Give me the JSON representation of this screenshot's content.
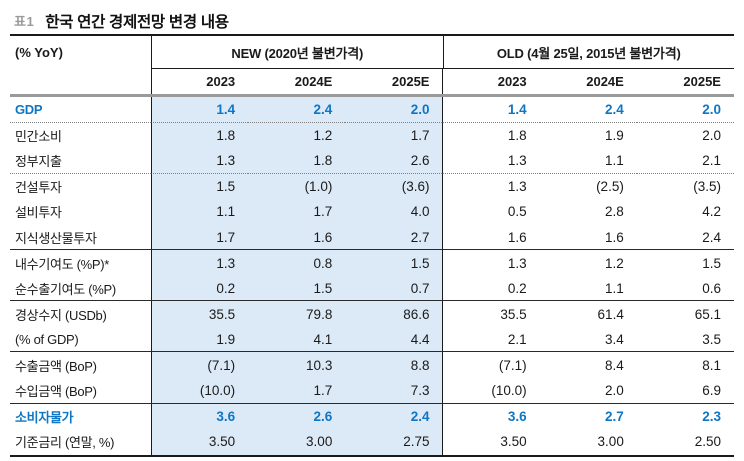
{
  "colors": {
    "accent_blue": "#0e76c4",
    "new_columns_bg": "#dce9f7",
    "header_rule_gray": "#9a9a9a"
  },
  "table": {
    "tag": "표1",
    "title": "한국 연간 경제전망 변경 내용",
    "unit_label": "(% YoY)",
    "groups": [
      {
        "label": "NEW (2020년 불변가격)",
        "years": [
          "2023",
          "2024E",
          "2025E"
        ]
      },
      {
        "label": "OLD (4월 25일, 2015년 불변가격)",
        "years": [
          "2023",
          "2024E",
          "2025E"
        ]
      }
    ],
    "rows": [
      {
        "label": "GDP",
        "new": [
          "1.4",
          "2.4",
          "2.0"
        ],
        "old": [
          "1.4",
          "2.4",
          "2.0"
        ],
        "highlight": true,
        "sep": "dotted"
      },
      {
        "label": "민간소비",
        "new": [
          "1.8",
          "1.2",
          "1.7"
        ],
        "old": [
          "1.8",
          "1.9",
          "2.0"
        ],
        "highlight": false,
        "sep": "none"
      },
      {
        "label": "정부지출",
        "new": [
          "1.3",
          "1.8",
          "2.6"
        ],
        "old": [
          "1.3",
          "1.1",
          "2.1"
        ],
        "highlight": false,
        "sep": "dotted"
      },
      {
        "label": "건설투자",
        "new": [
          "1.5",
          "(1.0)",
          "(3.6)"
        ],
        "old": [
          "1.3",
          "(2.5)",
          "(3.5)"
        ],
        "highlight": false,
        "sep": "none"
      },
      {
        "label": "설비투자",
        "new": [
          "1.1",
          "1.7",
          "4.0"
        ],
        "old": [
          "0.5",
          "2.8",
          "4.2"
        ],
        "highlight": false,
        "sep": "none"
      },
      {
        "label": "지식생산물투자",
        "new": [
          "1.7",
          "1.6",
          "2.7"
        ],
        "old": [
          "1.6",
          "1.6",
          "2.4"
        ],
        "highlight": false,
        "sep": "solid"
      },
      {
        "label": "내수기여도 (%P)*",
        "new": [
          "1.3",
          "0.8",
          "1.5"
        ],
        "old": [
          "1.3",
          "1.2",
          "1.5"
        ],
        "highlight": false,
        "sep": "none"
      },
      {
        "label": "순수출기여도 (%P)",
        "new": [
          "0.2",
          "1.5",
          "0.7"
        ],
        "old": [
          "0.2",
          "1.1",
          "0.6"
        ],
        "highlight": false,
        "sep": "solid"
      },
      {
        "label": "경상수지 (USDb)",
        "new": [
          "35.5",
          "79.8",
          "86.6"
        ],
        "old": [
          "35.5",
          "61.4",
          "65.1"
        ],
        "highlight": false,
        "sep": "none"
      },
      {
        "label": "(% of GDP)",
        "new": [
          "1.9",
          "4.1",
          "4.4"
        ],
        "old": [
          "2.1",
          "3.4",
          "3.5"
        ],
        "highlight": false,
        "sep": "solid"
      },
      {
        "label": "수출금액 (BoP)",
        "new": [
          "(7.1)",
          "10.3",
          "8.8"
        ],
        "old": [
          "(7.1)",
          "8.4",
          "8.1"
        ],
        "highlight": false,
        "sep": "none"
      },
      {
        "label": "수입금액 (BoP)",
        "new": [
          "(10.0)",
          "1.7",
          "7.3"
        ],
        "old": [
          "(10.0)",
          "2.0",
          "6.9"
        ],
        "highlight": false,
        "sep": "solid"
      },
      {
        "label": "소비자물가",
        "new": [
          "3.6",
          "2.6",
          "2.4"
        ],
        "old": [
          "3.6",
          "2.7",
          "2.3"
        ],
        "highlight": true,
        "sep": "none"
      },
      {
        "label": "기준금리 (연말, %)",
        "new": [
          "3.50",
          "3.00",
          "2.75"
        ],
        "old": [
          "3.50",
          "3.00",
          "2.50"
        ],
        "highlight": false,
        "sep": "none"
      }
    ]
  }
}
